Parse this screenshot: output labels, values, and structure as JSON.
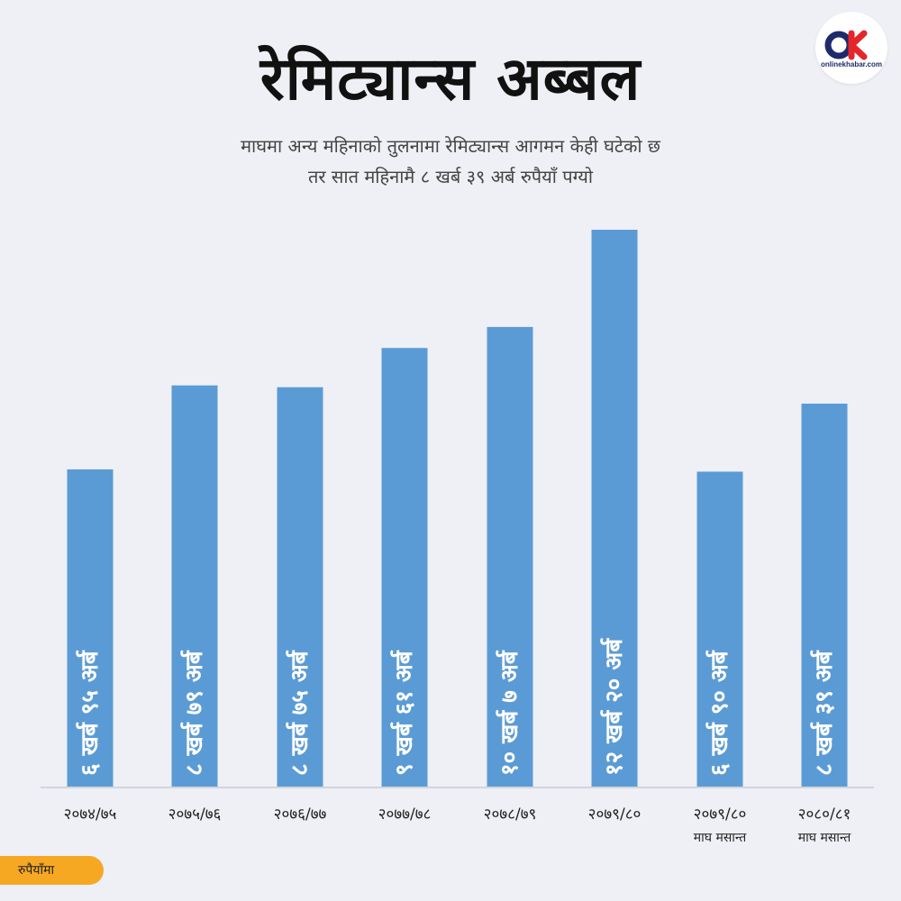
{
  "header": {
    "title": "रेमिट्यान्स अब्बल",
    "subtitle_line1": "माघमा अन्य महिनाको तुलनामा रेमिट्यान्स आगमन केही घटेको छ",
    "subtitle_line2": "तर सात महिनामै ८ खर्ब ३९ अर्ब रुपैयाँ पग्यो"
  },
  "logo": {
    "mark": "OK",
    "wordmark": "onlinekhabar.com",
    "icon": "onlinekhabar-logo"
  },
  "unit_label": "रुपैयाँमा",
  "colors": {
    "bar": "#5b9bd5",
    "badge": "#f7a823",
    "background": "#eef0f5"
  },
  "chart_data": {
    "type": "bar",
    "categories": [
      "२०७४/७५",
      "२०७५/७६",
      "२०७६/७७",
      "२०७७/७८",
      "२०७८/७९",
      "२०७९/८०",
      "२०७९/८०",
      "२०८०/८१"
    ],
    "category_sublabels": [
      "",
      "",
      "",
      "",
      "",
      "",
      "माघ मसान्त",
      "माघ मसान्त"
    ],
    "values": [
      695,
      879,
      875,
      961,
      1007,
      1220,
      690,
      839
    ],
    "value_unit": "अर्ब रुपैयाँ",
    "data_labels": [
      "६ खर्ब ९५ अर्ब",
      "८ खर्ब ७९ अर्ब",
      "८ खर्ब ७५ अर्ब",
      "९ खर्ब ६१ अर्ब",
      "१० खर्ब ७ अर्ब",
      "१२ खर्ब २० अर्ब",
      "६ खर्ब ९० अर्ब",
      "८ खर्ब ३९ अर्ब"
    ],
    "ylim": [
      0,
      1220
    ],
    "grid": false,
    "legend": "none"
  }
}
